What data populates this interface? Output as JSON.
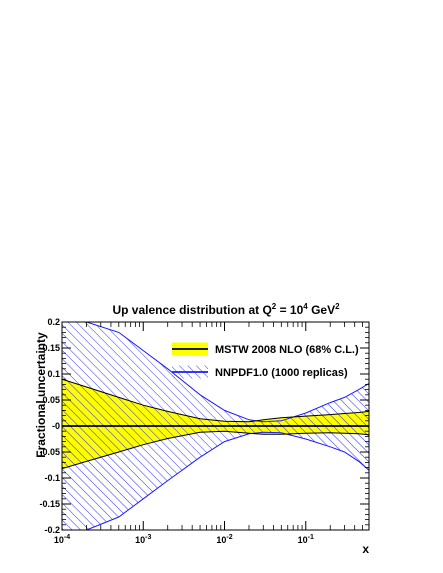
{
  "chart_data": {
    "type": "area",
    "title_main": "Up valence distribution at Q",
    "title_sup1": "2",
    "title_mid": " = 10",
    "title_sup2": "4",
    "title_unit": " GeV",
    "title_sup3": "2",
    "xlabel": "x",
    "ylabel": "Fractional uncertainty",
    "x_scale": "log",
    "xlim": [
      0.0001,
      0.6
    ],
    "ylim": [
      -0.2,
      0.2
    ],
    "x_ticks": [
      {
        "value": 0.0001,
        "base": "10",
        "exp": "-4"
      },
      {
        "value": 0.001,
        "base": "10",
        "exp": "-3"
      },
      {
        "value": 0.01,
        "base": "10",
        "exp": "-2"
      },
      {
        "value": 0.1,
        "base": "10",
        "exp": "-1"
      }
    ],
    "y_ticks": [
      {
        "value": 0.2,
        "label": "0.2"
      },
      {
        "value": 0.15,
        "label": "0.15"
      },
      {
        "value": 0.1,
        "label": "0.1"
      },
      {
        "value": 0.05,
        "label": "0.05"
      },
      {
        "value": 0,
        "label": "-0"
      },
      {
        "value": -0.05,
        "label": "-0.05"
      },
      {
        "value": -0.1,
        "label": "-0.1"
      },
      {
        "value": -0.15,
        "label": "-0.15"
      },
      {
        "value": -0.2,
        "label": "-0.2"
      }
    ],
    "legend_position": "top-right",
    "series": [
      {
        "name": "NNPDF1.0 (1000 replicas)",
        "style": "hatched band",
        "color": "#1a1aff",
        "x": [
          0.0001,
          0.0002,
          0.0005,
          0.001,
          0.002,
          0.005,
          0.01,
          0.02,
          0.03,
          0.05,
          0.1,
          0.2,
          0.3,
          0.45,
          0.6
        ],
        "upper": [
          0.2,
          0.2,
          0.18,
          0.145,
          0.11,
          0.06,
          0.03,
          0.012,
          0.008,
          0.01,
          0.025,
          0.045,
          0.055,
          0.07,
          0.082
        ],
        "lower": [
          -0.2,
          -0.2,
          -0.175,
          -0.14,
          -0.105,
          -0.06,
          -0.03,
          -0.015,
          -0.012,
          -0.013,
          -0.025,
          -0.04,
          -0.05,
          -0.068,
          -0.085
        ]
      },
      {
        "name": "MSTW 2008 NLO (68% C.L.)",
        "style": "filled band",
        "color": "#ffff00",
        "x": [
          0.0001,
          0.0002,
          0.0005,
          0.001,
          0.002,
          0.005,
          0.01,
          0.02,
          0.03,
          0.05,
          0.1,
          0.2,
          0.3,
          0.45,
          0.6
        ],
        "upper": [
          0.09,
          0.075,
          0.055,
          0.04,
          0.028,
          0.014,
          0.009,
          0.008,
          0.012,
          0.016,
          0.019,
          0.022,
          0.024,
          0.026,
          0.028
        ],
        "lower": [
          -0.082,
          -0.068,
          -0.05,
          -0.036,
          -0.024,
          -0.012,
          -0.01,
          -0.014,
          -0.016,
          -0.016,
          -0.014,
          -0.013,
          -0.014,
          -0.015,
          -0.017
        ],
        "central": [
          0,
          0,
          0,
          0,
          0,
          0,
          0,
          0,
          0,
          0,
          0,
          0,
          0,
          0,
          0
        ]
      }
    ]
  }
}
